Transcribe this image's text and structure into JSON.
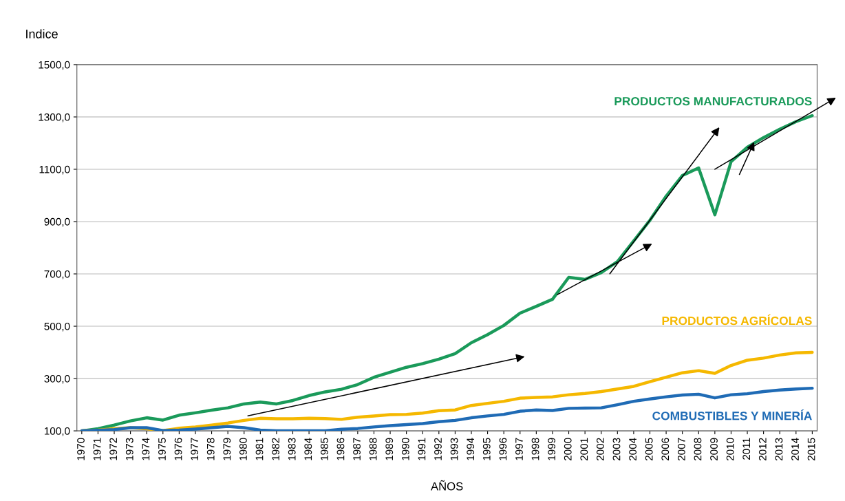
{
  "chart_data": {
    "type": "line",
    "ylabel": "Indice",
    "xlabel": "AÑOS",
    "x": [
      1970,
      1971,
      1972,
      1973,
      1974,
      1975,
      1976,
      1977,
      1978,
      1979,
      1980,
      1981,
      1982,
      1983,
      1984,
      1985,
      1986,
      1987,
      1988,
      1989,
      1990,
      1991,
      1992,
      1993,
      1994,
      1995,
      1996,
      1997,
      1998,
      1999,
      2000,
      2001,
      2002,
      2003,
      2004,
      2005,
      2006,
      2007,
      2008,
      2009,
      2010,
      2011,
      2012,
      2013,
      2014,
      2015
    ],
    "xlim": [
      1969.7,
      2015.3
    ],
    "xticks": [
      1970,
      1971,
      1972,
      1973,
      1974,
      1975,
      1976,
      1977,
      1978,
      1979,
      1980,
      1981,
      1982,
      1983,
      1984,
      1985,
      1986,
      1987,
      1988,
      1989,
      1990,
      1991,
      1992,
      1993,
      1994,
      1995,
      1996,
      1997,
      1998,
      1999,
      2000,
      2001,
      2002,
      2003,
      2004,
      2005,
      2006,
      2007,
      2008,
      2009,
      2010,
      2011,
      2012,
      2013,
      2014,
      2015
    ],
    "series": [
      {
        "name": "PRODUCTOS MANUFACTURADOS",
        "color": "#1a9a5a",
        "values": [
          100,
          108,
          122,
          138,
          150,
          141,
          160,
          169,
          179,
          188,
          203,
          210,
          203,
          216,
          235,
          249,
          259,
          277,
          305,
          324,
          343,
          357,
          374,
          395,
          437,
          468,
          503,
          550,
          576,
          603,
          687,
          679,
          705,
          747,
          826,
          905,
          997,
          1076,
          1105,
          926,
          1129,
          1184,
          1221,
          1253,
          1282,
          1305
        ]
      },
      {
        "name": "PRODUCTOS AGRÍCOLAS",
        "color": "#f5b800",
        "values": [
          100,
          103,
          108,
          112,
          108,
          101,
          110,
          115,
          122,
          130,
          140,
          148,
          146,
          146,
          148,
          147,
          144,
          152,
          157,
          162,
          163,
          168,
          177,
          180,
          197,
          205,
          213,
          225,
          228,
          230,
          238,
          243,
          250,
          260,
          270,
          288,
          305,
          322,
          330,
          320,
          350,
          370,
          378,
          390,
          398,
          400
        ]
      },
      {
        "name": "COMBUSTIBLES Y MINERÍA",
        "color": "#1f6bb5",
        "values": [
          100,
          102,
          105,
          112,
          112,
          101,
          103,
          107,
          112,
          117,
          112,
          103,
          100,
          100,
          100,
          100,
          106,
          109,
          115,
          120,
          124,
          128,
          135,
          140,
          150,
          157,
          163,
          175,
          180,
          178,
          186,
          187,
          188,
          200,
          213,
          222,
          230,
          237,
          240,
          226,
          238,
          242,
          250,
          256,
          260,
          263
        ]
      },
      {
        "type": "line",
        "color": "#000000",
        "x": [
          2009,
          2015
        ],
        "values": [
          1100,
          1320
        ]
      }
    ],
    "ylim": [
      100,
      1500
    ],
    "yticks": [
      {
        "value": 100,
        "label": "100,0"
      },
      {
        "value": 300,
        "label": "300,0"
      },
      {
        "value": 500,
        "label": "500,0"
      },
      {
        "value": 700,
        "label": "700,0"
      },
      {
        "value": 900,
        "label": "900,0"
      },
      {
        "value": 1100,
        "label": "1100,0"
      },
      {
        "value": 1300,
        "label": "1300,0"
      },
      {
        "value": 1500,
        "label": "1500,0"
      }
    ],
    "grid": "y",
    "legend": false,
    "marker": "none",
    "line_style": "solid"
  }
}
